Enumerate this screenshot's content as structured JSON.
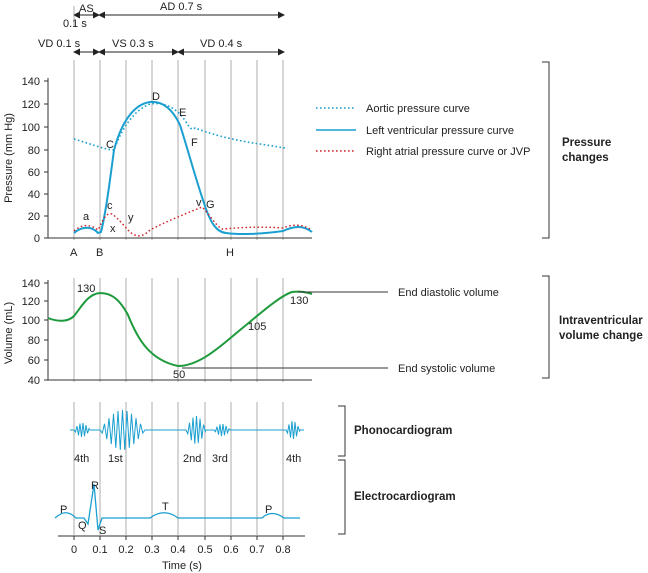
{
  "timing": {
    "as_label": "AS",
    "as_duration": "0.1 s",
    "ad_label": "AD 0.7 s",
    "vd1_label": "VD 0.1 s",
    "vs_label": "VS 0.3 s",
    "vd2_label": "VD 0.4 s"
  },
  "pressure": {
    "ylabel": "Pressure (mm Hg)",
    "yticks": [
      "0",
      "20",
      "40",
      "60",
      "80",
      "100",
      "120",
      "140"
    ],
    "point_labels": [
      "a",
      "c",
      "x",
      "y",
      "C",
      "D",
      "E",
      "F",
      "v",
      "G"
    ],
    "phase_labels": [
      "A",
      "B",
      "H"
    ],
    "legend": [
      {
        "label": "Aortic pressure curve",
        "color": "#1a9fd0",
        "style": "dotted"
      },
      {
        "label": "Left ventricular pressure curve",
        "color": "#1a9fd0",
        "style": "solid"
      },
      {
        "label": "Right atrial pressure curve or JVP",
        "color": "#d0202a",
        "style": "dotted"
      }
    ],
    "section_title_1": "Pressure",
    "section_title_2": "changes"
  },
  "volume": {
    "ylabel": "Volume (mL)",
    "yticks": [
      "40",
      "60",
      "80",
      "100",
      "120",
      "140"
    ],
    "value_labels": [
      "130",
      "130",
      "105",
      "50"
    ],
    "edv_label": "End diastolic volume",
    "esv_label": "End systolic volume",
    "section_title_1": "Intraventricular",
    "section_title_2": "volume change",
    "color": "#1e9a3c"
  },
  "phono": {
    "sound_labels": [
      "4th",
      "1st",
      "2nd",
      "3rd",
      "4th"
    ],
    "section_title": "Phonocardiogram",
    "color": "#1a9fd0"
  },
  "ecg": {
    "wave_labels": [
      "P",
      "R",
      "Q",
      "S",
      "T",
      "P"
    ],
    "section_title": "Electrocardiogram",
    "color": "#1a9fd0"
  },
  "time_axis": {
    "xlabel": "Time (s)",
    "ticks": [
      "0",
      "0.1",
      "0.2",
      "0.3",
      "0.4",
      "0.5",
      "0.6",
      "0.7",
      "0.8"
    ]
  }
}
